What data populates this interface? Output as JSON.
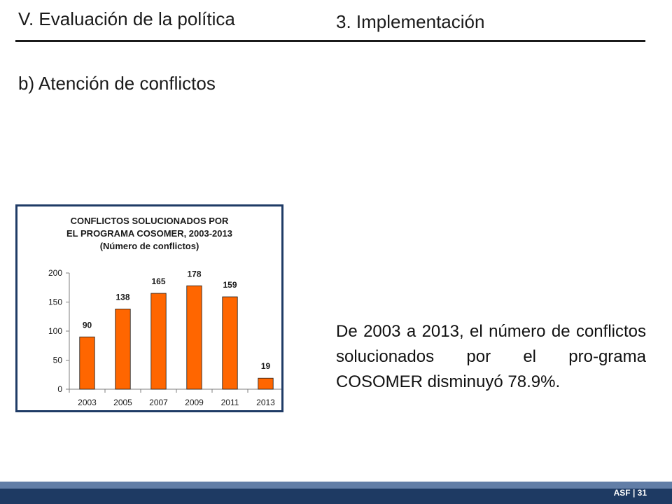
{
  "header": {
    "section": "V. Evaluación de la política",
    "topic": "3. Implementación"
  },
  "subtitle": "b) Atención de conflictos",
  "chart_data": {
    "type": "bar",
    "title_lines": [
      "CONFLICTOS SOLUCIONADOS POR",
      "EL PROGRAMA COSOMER, 2003-2013",
      "(Número de conflictos)"
    ],
    "categories": [
      "2003",
      "2005",
      "2007",
      "2009",
      "2011",
      "2013"
    ],
    "values": [
      90,
      138,
      165,
      178,
      159,
      19
    ],
    "ylim": [
      0,
      200
    ],
    "yticks": [
      0,
      50,
      100,
      150,
      200
    ],
    "bar_color": "#ff6600",
    "grid": false
  },
  "paragraph": "De 2003 a 2013, el número de conflictos solucionados por el pro-grama COSOMER disminuyó 78.9%.",
  "footer": "ASF | 31",
  "colors": {
    "frame": "#1f3b66",
    "footer_band": "#1e3a63"
  }
}
